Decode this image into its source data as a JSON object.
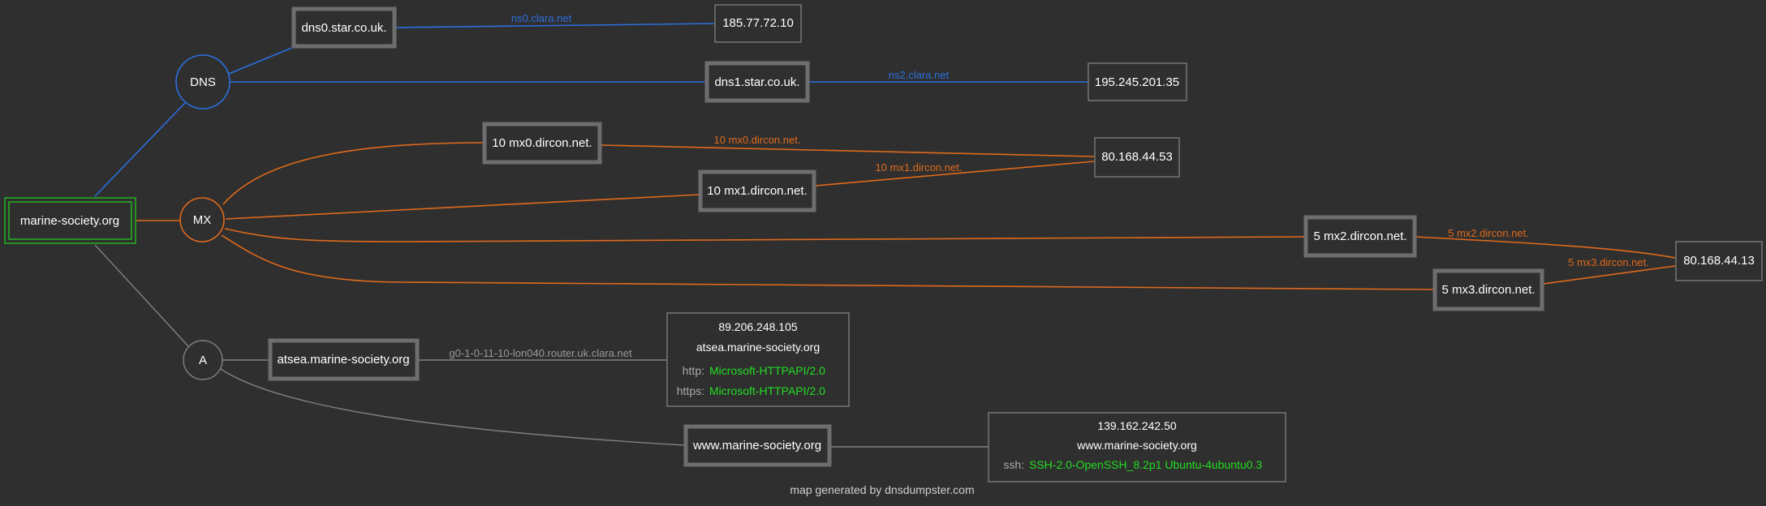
{
  "colors": {
    "background": "#2f2f2f",
    "dns_edge": "#2b6fde",
    "mx_edge": "#e06a1c",
    "a_edge": "#808080",
    "root_border": "#22b322",
    "server_text": "#22dd22",
    "node_text": "#ffffff",
    "thick_border": "#6e6e6e",
    "thin_border": "#7a7a7a",
    "footer_text": "#d0d0d0"
  },
  "root": {
    "label": "marine-society.org"
  },
  "categories": {
    "dns": "DNS",
    "mx": "MX",
    "a": "A"
  },
  "hosts": {
    "dns0": "dns0.star.co.uk.",
    "dns1": "dns1.star.co.uk.",
    "mx0": "10 mx0.dircon.net.",
    "mx1": "10 mx1.dircon.net.",
    "mx2": "5 mx2.dircon.net.",
    "mx3": "5 mx3.dircon.net.",
    "atsea": "atsea.marine-society.org",
    "www": "www.marine-society.org"
  },
  "ips": {
    "ns0": "185.77.72.10",
    "ns2": "195.245.201.35",
    "mx01": "80.168.44.53",
    "mx23": "80.168.44.13"
  },
  "edge_labels": {
    "dns0": "ns0.clara.net",
    "dns1": "ns2.clara.net",
    "mx0": "10 mx0.dircon.net.",
    "mx1": "10 mx1.dircon.net.",
    "mx2": "5 mx2.dircon.net.",
    "mx3": "5 mx3.dircon.net.",
    "atsea": "g0-1-0-11-10-lon040.router.uk.clara.net"
  },
  "info_boxes": {
    "atsea": {
      "ip": "89.206.248.105",
      "host": "atsea.marine-society.org",
      "services": [
        {
          "key": "http:",
          "value": "Microsoft-HTTPAPI/2.0"
        },
        {
          "key": "https:",
          "value": "Microsoft-HTTPAPI/2.0"
        }
      ]
    },
    "www": {
      "ip": "139.162.242.50",
      "host": "www.marine-society.org",
      "services": [
        {
          "key": "ssh:",
          "value": "SSH-2.0-OpenSSH_8.2p1 Ubuntu-4ubuntu0.3"
        }
      ]
    }
  },
  "footer": "map generated by dnsdumpster.com"
}
